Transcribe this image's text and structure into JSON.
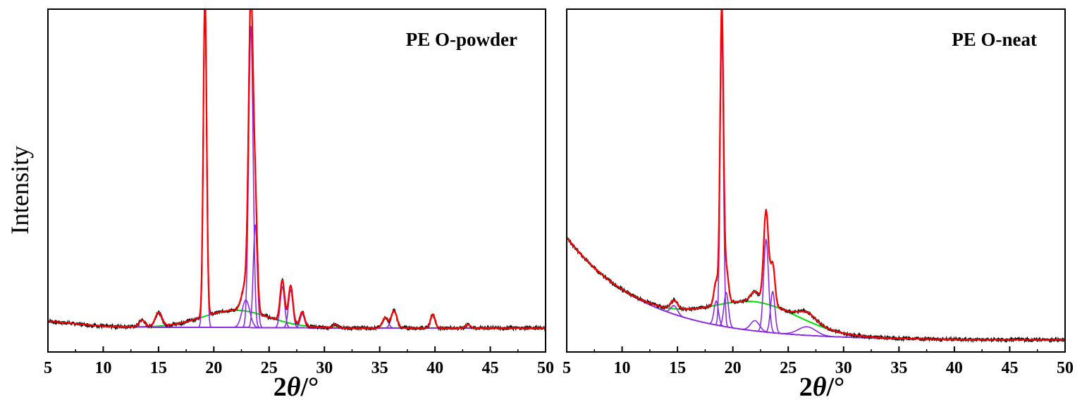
{
  "ylabel": "Intensity",
  "colors": {
    "measured": "#000000",
    "fit": "#ff0000",
    "crystalline_peaks": "#8a2be2",
    "amorphous_halo": "#00e000"
  },
  "chart_data": [
    {
      "type": "line",
      "annotation": "PE O-powder",
      "xlabel_parts": [
        "2",
        "θ",
        "/°"
      ],
      "xlim": [
        5,
        50
      ],
      "xticks": [
        5,
        10,
        15,
        20,
        25,
        30,
        35,
        40,
        45,
        50
      ],
      "ylim": [
        0,
        1.0
      ],
      "baseline": 0.07,
      "background_line": [
        [
          5,
          0.09
        ],
        [
          10,
          0.075
        ],
        [
          15,
          0.072
        ],
        [
          20,
          0.072
        ],
        [
          30,
          0.07
        ],
        [
          40,
          0.07
        ],
        [
          50,
          0.07
        ]
      ],
      "amorphous_halo": {
        "center": 22.0,
        "width": 3.0,
        "height": 0.05
      },
      "peaks": [
        {
          "x": 13.5,
          "height": 0.02,
          "width": 0.25
        },
        {
          "x": 15.0,
          "height": 0.04,
          "width": 0.3
        },
        {
          "x": 19.2,
          "height": 0.93,
          "width": 0.15
        },
        {
          "x": 22.9,
          "height": 0.08,
          "width": 0.35
        },
        {
          "x": 23.35,
          "height": 0.88,
          "width": 0.2
        },
        {
          "x": 23.75,
          "height": 0.3,
          "width": 0.18
        },
        {
          "x": 26.2,
          "height": 0.12,
          "width": 0.2
        },
        {
          "x": 26.95,
          "height": 0.11,
          "width": 0.2
        },
        {
          "x": 28.0,
          "height": 0.04,
          "width": 0.2
        },
        {
          "x": 31.0,
          "height": 0.01,
          "width": 0.2
        },
        {
          "x": 35.5,
          "height": 0.03,
          "width": 0.25
        },
        {
          "x": 36.3,
          "height": 0.05,
          "width": 0.25
        },
        {
          "x": 39.8,
          "height": 0.04,
          "width": 0.2
        },
        {
          "x": 43.0,
          "height": 0.01,
          "width": 0.2
        }
      ]
    },
    {
      "type": "line",
      "annotation": "PE O-neat",
      "xlabel_parts": [
        "2",
        "θ",
        "/°"
      ],
      "xlim": [
        5,
        50
      ],
      "xticks": [
        5,
        10,
        15,
        20,
        25,
        30,
        35,
        40,
        45,
        50
      ],
      "ylim": [
        0,
        1.0
      ],
      "background": {
        "floor": 0.035,
        "amplitude": 0.3,
        "decay": 7.0
      },
      "amorphous_halo": {
        "center": 22.0,
        "width": 4.0,
        "height": 0.085
      },
      "peaks": [
        {
          "x": 14.7,
          "height": 0.025,
          "width": 0.3
        },
        {
          "x": 18.5,
          "height": 0.07,
          "width": 0.2
        },
        {
          "x": 19.0,
          "height": 0.86,
          "width": 0.15
        },
        {
          "x": 19.4,
          "height": 0.1,
          "width": 0.2
        },
        {
          "x": 22.0,
          "height": 0.03,
          "width": 0.4
        },
        {
          "x": 23.0,
          "height": 0.27,
          "width": 0.22
        },
        {
          "x": 23.6,
          "height": 0.12,
          "width": 0.2
        },
        {
          "x": 26.7,
          "height": 0.025,
          "width": 0.8
        }
      ]
    }
  ]
}
